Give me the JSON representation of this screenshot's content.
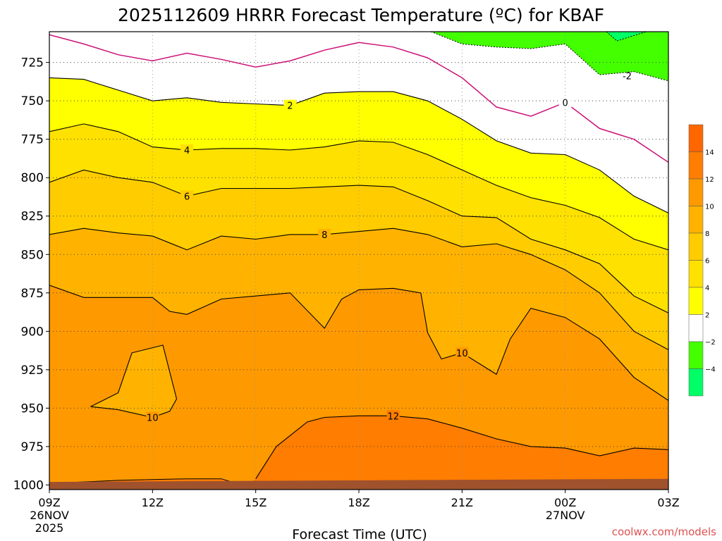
{
  "chart_data": {
    "type": "heatmap",
    "title": "2025112609 HRRR Forecast Temperature (ºC) for KBAF",
    "xlabel": "Forecast Time (UTC)",
    "ylabel": "",
    "y_axis": {
      "unit": "hPa",
      "reversed": true,
      "ylim": [
        1003,
        705
      ],
      "ticks": [
        725,
        750,
        775,
        800,
        825,
        850,
        875,
        900,
        925,
        950,
        975,
        1000
      ]
    },
    "x_axis": {
      "xlim": [
        9,
        27
      ],
      "ticks": [
        {
          "hour": 9,
          "label": "09Z",
          "sub1": "26NOV",
          "sub2": "2025"
        },
        {
          "hour": 12,
          "label": "12Z"
        },
        {
          "hour": 15,
          "label": "15Z"
        },
        {
          "hour": 18,
          "label": "18Z"
        },
        {
          "hour": 21,
          "label": "21Z"
        },
        {
          "hour": 24,
          "label": "00Z",
          "sub1": "27NOV"
        },
        {
          "hour": 27,
          "label": "03Z"
        }
      ]
    },
    "colorbar": {
      "bins": [
        {
          "from": -6,
          "to": -4,
          "color": "#00ff66"
        },
        {
          "from": -4,
          "to": -2,
          "color": "#44ff00"
        },
        {
          "from": -2,
          "to": 2,
          "color": "#ffffff"
        },
        {
          "from": 2,
          "to": 4,
          "color": "#ffff00"
        },
        {
          "from": 4,
          "to": 6,
          "color": "#ffe100"
        },
        {
          "from": 6,
          "to": 8,
          "color": "#ffcc00"
        },
        {
          "from": 8,
          "to": 10,
          "color": "#ffb300"
        },
        {
          "from": 10,
          "to": 12,
          "color": "#ff9900"
        },
        {
          "from": 12,
          "to": 14,
          "color": "#ff7d00"
        },
        {
          "from": 14,
          "to": 16,
          "color": "#ff6600"
        }
      ],
      "tick_labels": [
        "−4",
        "−2",
        "2",
        "4",
        "6",
        "8",
        "10",
        "12",
        "14"
      ]
    },
    "freezing_line_color": "#cc1177",
    "ground_color": "#a0522d",
    "contours": [
      {
        "level": 0,
        "label": "0",
        "series": [
          [
            9,
            707
          ],
          [
            10,
            713
          ],
          [
            11,
            720
          ],
          [
            12,
            724
          ],
          [
            13,
            719
          ],
          [
            14,
            723
          ],
          [
            15,
            728
          ],
          [
            16,
            724
          ],
          [
            17,
            717
          ],
          [
            18,
            712
          ],
          [
            19,
            715
          ],
          [
            20,
            722
          ],
          [
            21,
            735
          ],
          [
            22,
            754
          ],
          [
            23,
            760
          ],
          [
            24,
            751
          ],
          [
            25,
            768
          ],
          [
            26,
            775
          ],
          [
            27,
            790
          ]
        ]
      },
      {
        "level": 2,
        "label": "2",
        "series": [
          [
            9,
            735
          ],
          [
            10,
            736
          ],
          [
            11,
            743
          ],
          [
            12,
            750
          ],
          [
            13,
            748
          ],
          [
            14,
            751
          ],
          [
            15,
            752
          ],
          [
            16,
            753
          ],
          [
            17,
            745
          ],
          [
            18,
            744
          ],
          [
            19,
            744
          ],
          [
            20,
            750
          ],
          [
            21,
            762
          ],
          [
            22,
            776
          ],
          [
            23,
            784
          ],
          [
            24,
            785
          ],
          [
            25,
            795
          ],
          [
            26,
            812
          ],
          [
            27,
            823
          ]
        ]
      },
      {
        "level": 4,
        "label": "4",
        "series": [
          [
            9,
            770
          ],
          [
            10,
            765
          ],
          [
            11,
            770
          ],
          [
            12,
            780
          ],
          [
            13,
            782
          ],
          [
            14,
            781
          ],
          [
            15,
            781
          ],
          [
            16,
            782
          ],
          [
            17,
            780
          ],
          [
            18,
            776
          ],
          [
            19,
            777
          ],
          [
            20,
            785
          ],
          [
            21,
            795
          ],
          [
            22,
            805
          ],
          [
            23,
            813
          ],
          [
            24,
            818
          ],
          [
            25,
            826
          ],
          [
            26,
            840
          ],
          [
            27,
            847
          ]
        ]
      },
      {
        "level": 6,
        "label": "6",
        "series": [
          [
            9,
            803
          ],
          [
            10,
            795
          ],
          [
            11,
            800
          ],
          [
            12,
            803
          ],
          [
            13,
            812
          ],
          [
            14,
            807
          ],
          [
            15,
            807
          ],
          [
            16,
            807
          ],
          [
            17,
            806
          ],
          [
            18,
            805
          ],
          [
            19,
            806
          ],
          [
            20,
            815
          ],
          [
            21,
            825
          ],
          [
            22,
            826
          ],
          [
            23,
            840
          ],
          [
            24,
            847
          ],
          [
            25,
            856
          ],
          [
            26,
            877
          ],
          [
            27,
            888
          ]
        ]
      },
      {
        "level": 8,
        "label": "8",
        "series": [
          [
            9,
            837
          ],
          [
            10,
            833
          ],
          [
            11,
            836
          ],
          [
            12,
            838
          ],
          [
            13,
            847
          ],
          [
            14,
            838
          ],
          [
            15,
            840
          ],
          [
            16,
            837
          ],
          [
            17,
            837
          ],
          [
            18,
            835
          ],
          [
            19,
            833
          ],
          [
            20,
            837
          ],
          [
            21,
            845
          ],
          [
            22,
            843
          ],
          [
            23,
            850
          ],
          [
            24,
            860
          ],
          [
            25,
            875
          ],
          [
            26,
            900
          ],
          [
            27,
            912
          ]
        ]
      },
      {
        "level": 10,
        "label": "10",
        "series": [
          [
            9,
            870
          ],
          [
            10,
            878
          ],
          [
            11,
            878
          ],
          [
            12,
            878
          ],
          [
            12.5,
            887
          ],
          [
            13,
            889
          ],
          [
            14,
            879
          ],
          [
            15,
            877
          ],
          [
            16,
            875
          ],
          [
            17,
            898
          ],
          [
            17.5,
            879
          ],
          [
            18,
            873
          ],
          [
            19,
            872
          ],
          [
            19.8,
            875
          ],
          [
            20,
            901
          ],
          [
            20.4,
            918
          ],
          [
            21,
            914
          ],
          [
            22,
            928
          ],
          [
            22.4,
            905
          ],
          [
            23,
            885
          ],
          [
            24,
            891
          ],
          [
            25,
            905
          ],
          [
            26,
            930
          ],
          [
            27,
            945
          ]
        ]
      },
      {
        "level": 10,
        "label": "10",
        "series": [
          [
            10.2,
            949
          ],
          [
            11,
            940
          ],
          [
            11.4,
            914
          ],
          [
            12.3,
            909
          ],
          [
            12.7,
            944
          ],
          [
            12.5,
            952
          ],
          [
            12,
            956
          ],
          [
            11,
            951
          ],
          [
            10.2,
            949
          ]
        ]
      },
      {
        "level": 12,
        "label": "12",
        "series": [
          [
            15,
            996
          ],
          [
            15.6,
            975
          ],
          [
            16.5,
            959
          ],
          [
            17,
            956
          ],
          [
            18,
            955
          ],
          [
            19,
            955
          ],
          [
            20,
            957
          ],
          [
            21,
            963
          ],
          [
            22,
            970
          ],
          [
            23,
            975
          ],
          [
            24,
            976
          ],
          [
            25,
            981
          ],
          [
            26,
            976
          ],
          [
            27,
            977
          ]
        ]
      }
    ],
    "green_region_label": "-2",
    "credit": "coolwx.com/models"
  }
}
